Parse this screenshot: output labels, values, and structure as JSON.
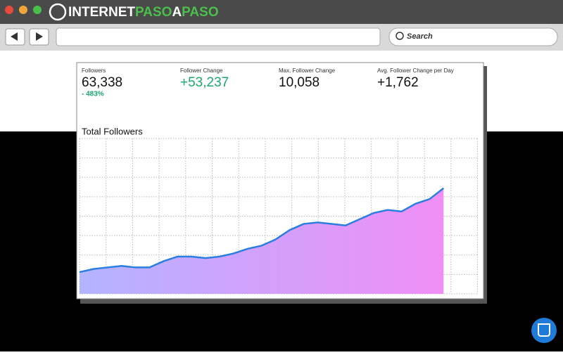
{
  "browser": {
    "logo": [
      "INTERNET",
      "PASO",
      "A",
      "PASO"
    ],
    "search": "Search"
  },
  "stats": [
    {
      "label": "Followers",
      "value": "63,338",
      "change": "- 483%"
    },
    {
      "label": "Follower Change",
      "value": "+53,237"
    },
    {
      "label": "Max. Follower Change",
      "value": "10,058"
    },
    {
      "label": "Avg. Follower Change per Day",
      "value": "+1,762"
    }
  ],
  "chart_data": {
    "type": "area",
    "title": "Total Followers",
    "x": [
      0,
      1,
      2,
      3,
      4,
      5,
      6,
      7,
      8,
      9,
      10,
      11,
      12,
      13,
      14,
      15,
      16,
      17,
      18,
      19,
      20,
      21,
      22,
      23,
      24,
      25,
      26
    ],
    "series": [
      {
        "color": "#2b7de0",
        "values": [
          14,
          16,
          17,
          18,
          17,
          17,
          21,
          24,
          24,
          23,
          24,
          26,
          29,
          31,
          35,
          41,
          45,
          46,
          45,
          44,
          48,
          52,
          54,
          53,
          58,
          61,
          68
        ]
      }
    ],
    "xlim": [
      0,
      28.5
    ],
    "ylim": [
      0,
      100
    ],
    "grid": true
  }
}
